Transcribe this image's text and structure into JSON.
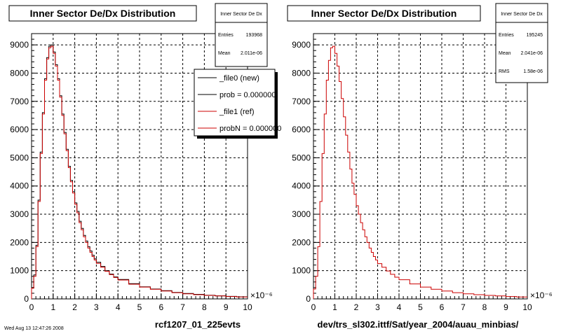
{
  "footer_note": "Wed Aug 13 12:47:26 2008",
  "chart_data": [
    {
      "type": "histogram-step",
      "title": "Inner Sector De/Dx Distribution",
      "xlabel": "rcf1207_01_225evts",
      "x_exponent": "×10⁻⁶",
      "xlim": [
        0,
        10
      ],
      "ylim": [
        0,
        9400
      ],
      "x_ticks": [
        0,
        1,
        2,
        3,
        4,
        5,
        6,
        7,
        8,
        9,
        10
      ],
      "y_ticks": [
        0,
        1000,
        2000,
        3000,
        4000,
        5000,
        6000,
        7000,
        8000,
        9000
      ],
      "grid": true,
      "stats": {
        "title": "Inner Sector De Dx",
        "rows": [
          {
            "label": "Entries",
            "value": "193968"
          },
          {
            "label": "Mean",
            "value": "2.011e-06"
          }
        ]
      },
      "legend": {
        "placement": "top-right",
        "entries": [
          "_file0 (new)",
          "prob = 0.000000",
          "_file1 (ref)",
          "probN = 0.000000"
        ]
      },
      "series_colors": [
        "#000000",
        "#cc0000"
      ],
      "series": [
        {
          "name": "_file0 (new)",
          "color": "#000000",
          "x": [
            0.0,
            0.1,
            0.2,
            0.3,
            0.4,
            0.5,
            0.6,
            0.7,
            0.8,
            0.9,
            1.0,
            1.1,
            1.2,
            1.3,
            1.4,
            1.5,
            1.6,
            1.7,
            1.8,
            1.9,
            2.0,
            2.1,
            2.2,
            2.3,
            2.4,
            2.5,
            2.6,
            2.7,
            2.8,
            2.9,
            3.0,
            3.2,
            3.4,
            3.6,
            3.8,
            4.0,
            4.5,
            5.0,
            5.5,
            6.0,
            6.5,
            7.0,
            7.5,
            8.0,
            8.5,
            9.0,
            9.5
          ],
          "values": [
            400,
            850,
            1900,
            3500,
            5200,
            6600,
            7800,
            8550,
            8950,
            9000,
            8750,
            8300,
            7800,
            7200,
            6550,
            5900,
            5300,
            4700,
            4200,
            3800,
            3400,
            3100,
            2750,
            2500,
            2250,
            2050,
            1850,
            1700,
            1550,
            1420,
            1300,
            1150,
            1000,
            880,
            780,
            690,
            540,
            430,
            350,
            290,
            230,
            190,
            160,
            130,
            110,
            90,
            75
          ]
        },
        {
          "name": "_file1 (ref)",
          "color": "#cc0000",
          "x": [
            0.0,
            0.1,
            0.2,
            0.3,
            0.4,
            0.5,
            0.6,
            0.7,
            0.8,
            0.9,
            1.0,
            1.1,
            1.2,
            1.3,
            1.4,
            1.5,
            1.6,
            1.7,
            1.8,
            1.9,
            2.0,
            2.1,
            2.2,
            2.3,
            2.4,
            2.5,
            2.6,
            2.7,
            2.8,
            2.9,
            3.0,
            3.2,
            3.4,
            3.6,
            3.8,
            4.0,
            4.5,
            5.0,
            5.5,
            6.0,
            6.5,
            7.0,
            7.5,
            8.0,
            8.5,
            9.0,
            9.5
          ],
          "values": [
            380,
            800,
            1850,
            3450,
            5150,
            6550,
            7750,
            8500,
            8900,
            8950,
            8700,
            8250,
            7750,
            7150,
            6500,
            5850,
            5250,
            4650,
            4150,
            3750,
            3350,
            3050,
            2700,
            2450,
            2200,
            2000,
            1800,
            1650,
            1500,
            1380,
            1260,
            1120,
            980,
            860,
            760,
            670,
            520,
            420,
            340,
            280,
            220,
            180,
            150,
            125,
            105,
            85,
            70
          ]
        }
      ]
    },
    {
      "type": "histogram-step",
      "title": "Inner Sector De/Dx Distribution",
      "xlabel": "dev/trs_sl302.ittf/Sat/year_2004/auau_minbias/",
      "x_exponent": "×10⁻⁶",
      "xlim": [
        0,
        10
      ],
      "ylim": [
        0,
        9400
      ],
      "x_ticks": [
        0,
        1,
        2,
        3,
        4,
        5,
        6,
        7,
        8,
        9,
        10
      ],
      "y_ticks": [
        0,
        1000,
        2000,
        3000,
        4000,
        5000,
        6000,
        7000,
        8000,
        9000
      ],
      "grid": true,
      "stats": {
        "title": "Inner Sector De Dx",
        "rows": [
          {
            "label": "Entries",
            "value": "195245"
          },
          {
            "label": "Mean",
            "value": "2.041e-06"
          },
          {
            "label": "RMS",
            "value": "1.58e-06"
          }
        ]
      },
      "series": [
        {
          "name": "",
          "color": "#cc0000",
          "x": [
            0.0,
            0.1,
            0.2,
            0.3,
            0.4,
            0.5,
            0.6,
            0.7,
            0.8,
            0.9,
            1.0,
            1.1,
            1.2,
            1.3,
            1.4,
            1.5,
            1.6,
            1.7,
            1.8,
            1.9,
            2.0,
            2.1,
            2.2,
            2.3,
            2.4,
            2.5,
            2.6,
            2.7,
            2.8,
            2.9,
            3.0,
            3.2,
            3.4,
            3.6,
            3.8,
            4.0,
            4.5,
            5.0,
            5.5,
            6.0,
            6.5,
            7.0,
            7.5,
            8.0,
            8.5,
            9.0,
            9.5
          ],
          "values": [
            350,
            800,
            1850,
            3450,
            5150,
            6550,
            7750,
            8450,
            8900,
            8950,
            8700,
            8250,
            7700,
            7100,
            6450,
            5800,
            5200,
            4600,
            4100,
            3700,
            3300,
            3000,
            2700,
            2450,
            2200,
            2000,
            1800,
            1650,
            1500,
            1380,
            1250,
            1120,
            990,
            870,
            770,
            680,
            530,
            420,
            340,
            280,
            220,
            180,
            150,
            125,
            105,
            85,
            70
          ]
        }
      ]
    }
  ]
}
